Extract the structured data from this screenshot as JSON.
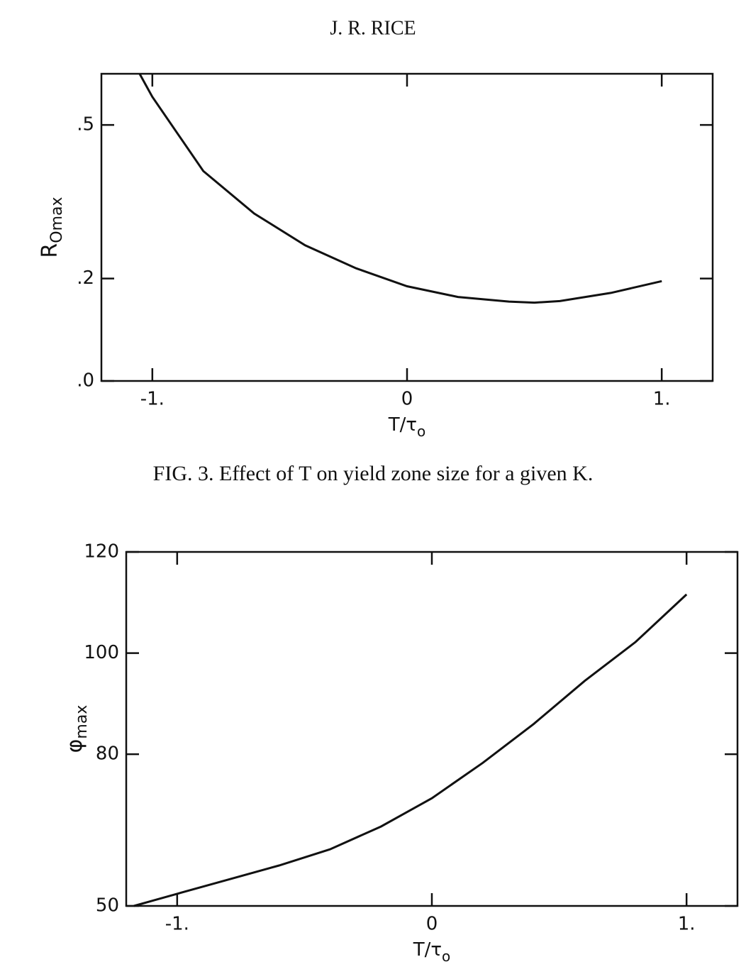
{
  "header": "J. R. RICE",
  "caption": "FIG. 3. Effect of T on yield zone size for a given K.",
  "chart_data": [
    {
      "type": "line",
      "xlabel": "T/τ",
      "xlabel_subscript": "o",
      "ylabel": "R",
      "ylabel_subscript": "Omax",
      "x": [
        -1.05,
        -1,
        -0.8,
        -0.6,
        -0.4,
        -0.2,
        0,
        0.2,
        0.4,
        0.5,
        0.6,
        0.8,
        1
      ],
      "series": [
        {
          "color": "#111111",
          "values": [
            0.6,
            0.555,
            0.41,
            0.327,
            0.265,
            0.22,
            0.185,
            0.164,
            0.155,
            0.153,
            0.156,
            0.172,
            0.195
          ]
        }
      ],
      "xlim": [
        -1.2,
        1.2
      ],
      "ylim": [
        0,
        0.6
      ],
      "xticks": [
        {
          "value": -1,
          "label": "-1."
        },
        0,
        {
          "value": 1,
          "label": "1."
        }
      ],
      "yticks": [
        {
          "value": 0,
          "label": ".0"
        },
        {
          "value": 0.2,
          "label": ".2"
        },
        {
          "value": 0.5,
          "label": ".5"
        }
      ]
    },
    {
      "type": "line",
      "xlabel": "T/τ",
      "xlabel_subscript": "o",
      "ylabel": "φ",
      "ylabel_subscript": "max",
      "x": [
        -1.17,
        -1,
        -0.8,
        -0.6,
        -0.4,
        -0.2,
        0,
        0.2,
        0.4,
        0.6,
        0.8,
        1
      ],
      "series": [
        {
          "color": "#111111",
          "values": [
            50,
            52.4,
            55.2,
            58,
            61.2,
            65.7,
            71.3,
            78.3,
            86,
            94.5,
            102.2,
            111.6
          ]
        }
      ],
      "xlim": [
        -1.2,
        1.2
      ],
      "ylim": [
        50,
        120
      ],
      "xticks": [
        {
          "value": -1,
          "label": "-1."
        },
        0,
        {
          "value": 1,
          "label": "1."
        }
      ],
      "yticks": [
        50,
        80,
        100,
        120
      ]
    }
  ]
}
